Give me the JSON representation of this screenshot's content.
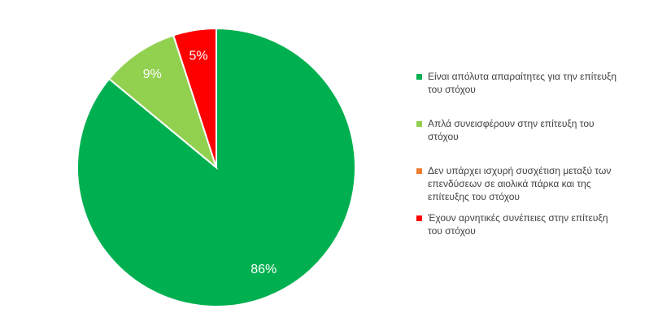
{
  "chart_data": {
    "type": "pie",
    "categories": [
      "Είναι απόλυτα απαραίτητες για την επίτευξη του στόχου",
      "Απλά συνεισφέρουν στην επίτευξη του στόχου",
      "Δεν υπάρχει ισχυρή συσχέτιση μεταξύ των επενδύσεων σε αιολικά πάρκα και της επίτευξης του στόχου",
      "Έχουν αρνητικές συνέπειες στην επίτευξη του στόχου"
    ],
    "values": [
      86,
      9,
      0,
      5
    ],
    "data_labels": [
      "86%",
      "9%",
      "",
      "5%"
    ],
    "colors": [
      "#00B050",
      "#92D050",
      "#ED7D31",
      "#FF0000"
    ],
    "legend_position": "right",
    "title": ""
  }
}
